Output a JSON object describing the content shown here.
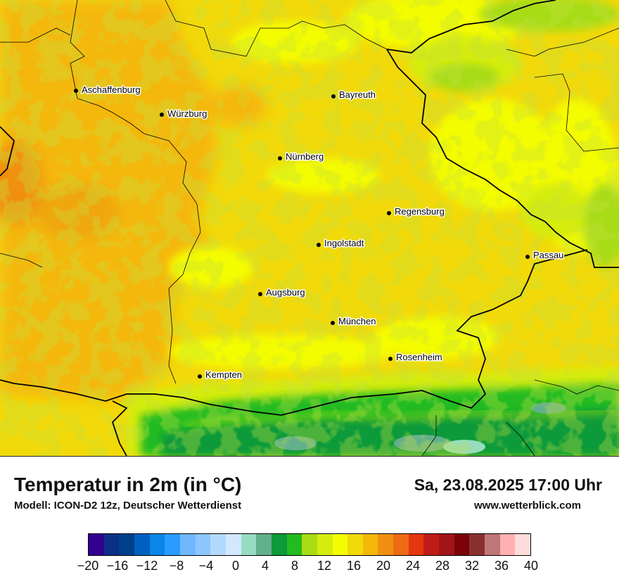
{
  "title": "Temperatur in 2m (in °C)",
  "model_info": "Modell: ICON-D2 12z, Deutscher Wetterdienst",
  "valid_time": "Sa, 23.08.2025 17:00 Uhr",
  "website": "www.wetterblick.com",
  "cities": [
    {
      "name": "Aschaffenburg"
    },
    {
      "name": "Würzburg"
    },
    {
      "name": "Bayreuth"
    },
    {
      "name": "Nürnberg"
    },
    {
      "name": "Regensburg"
    },
    {
      "name": "Ingolstadt"
    },
    {
      "name": "Passau"
    },
    {
      "name": "Augsburg"
    },
    {
      "name": "München"
    },
    {
      "name": "Rosenheim"
    },
    {
      "name": "Kempten"
    }
  ],
  "legend": {
    "unit": "°C",
    "ticks": [
      "−20",
      "−16",
      "−12",
      "−8",
      "−4",
      "0",
      "4",
      "8",
      "12",
      "16",
      "20",
      "24",
      "28",
      "32",
      "36",
      "40"
    ],
    "colors": [
      "#33008f",
      "#0c2f86",
      "#003f8a",
      "#0060c0",
      "#0a85e8",
      "#2b9cff",
      "#6fb8ff",
      "#8cc6ff",
      "#b4d9ff",
      "#d3e8ff",
      "#95dcc0",
      "#63b08c",
      "#0c9a3a",
      "#22bb20",
      "#a7dc12",
      "#d5ec10",
      "#f4fc05",
      "#f2d90a",
      "#f4b80a",
      "#f19010",
      "#ee6a12",
      "#e6360f",
      "#be1c16",
      "#a11418",
      "#7a0208",
      "#8a3030",
      "#c07777",
      "#ffb0b0",
      "#ffdcdc"
    ]
  }
}
